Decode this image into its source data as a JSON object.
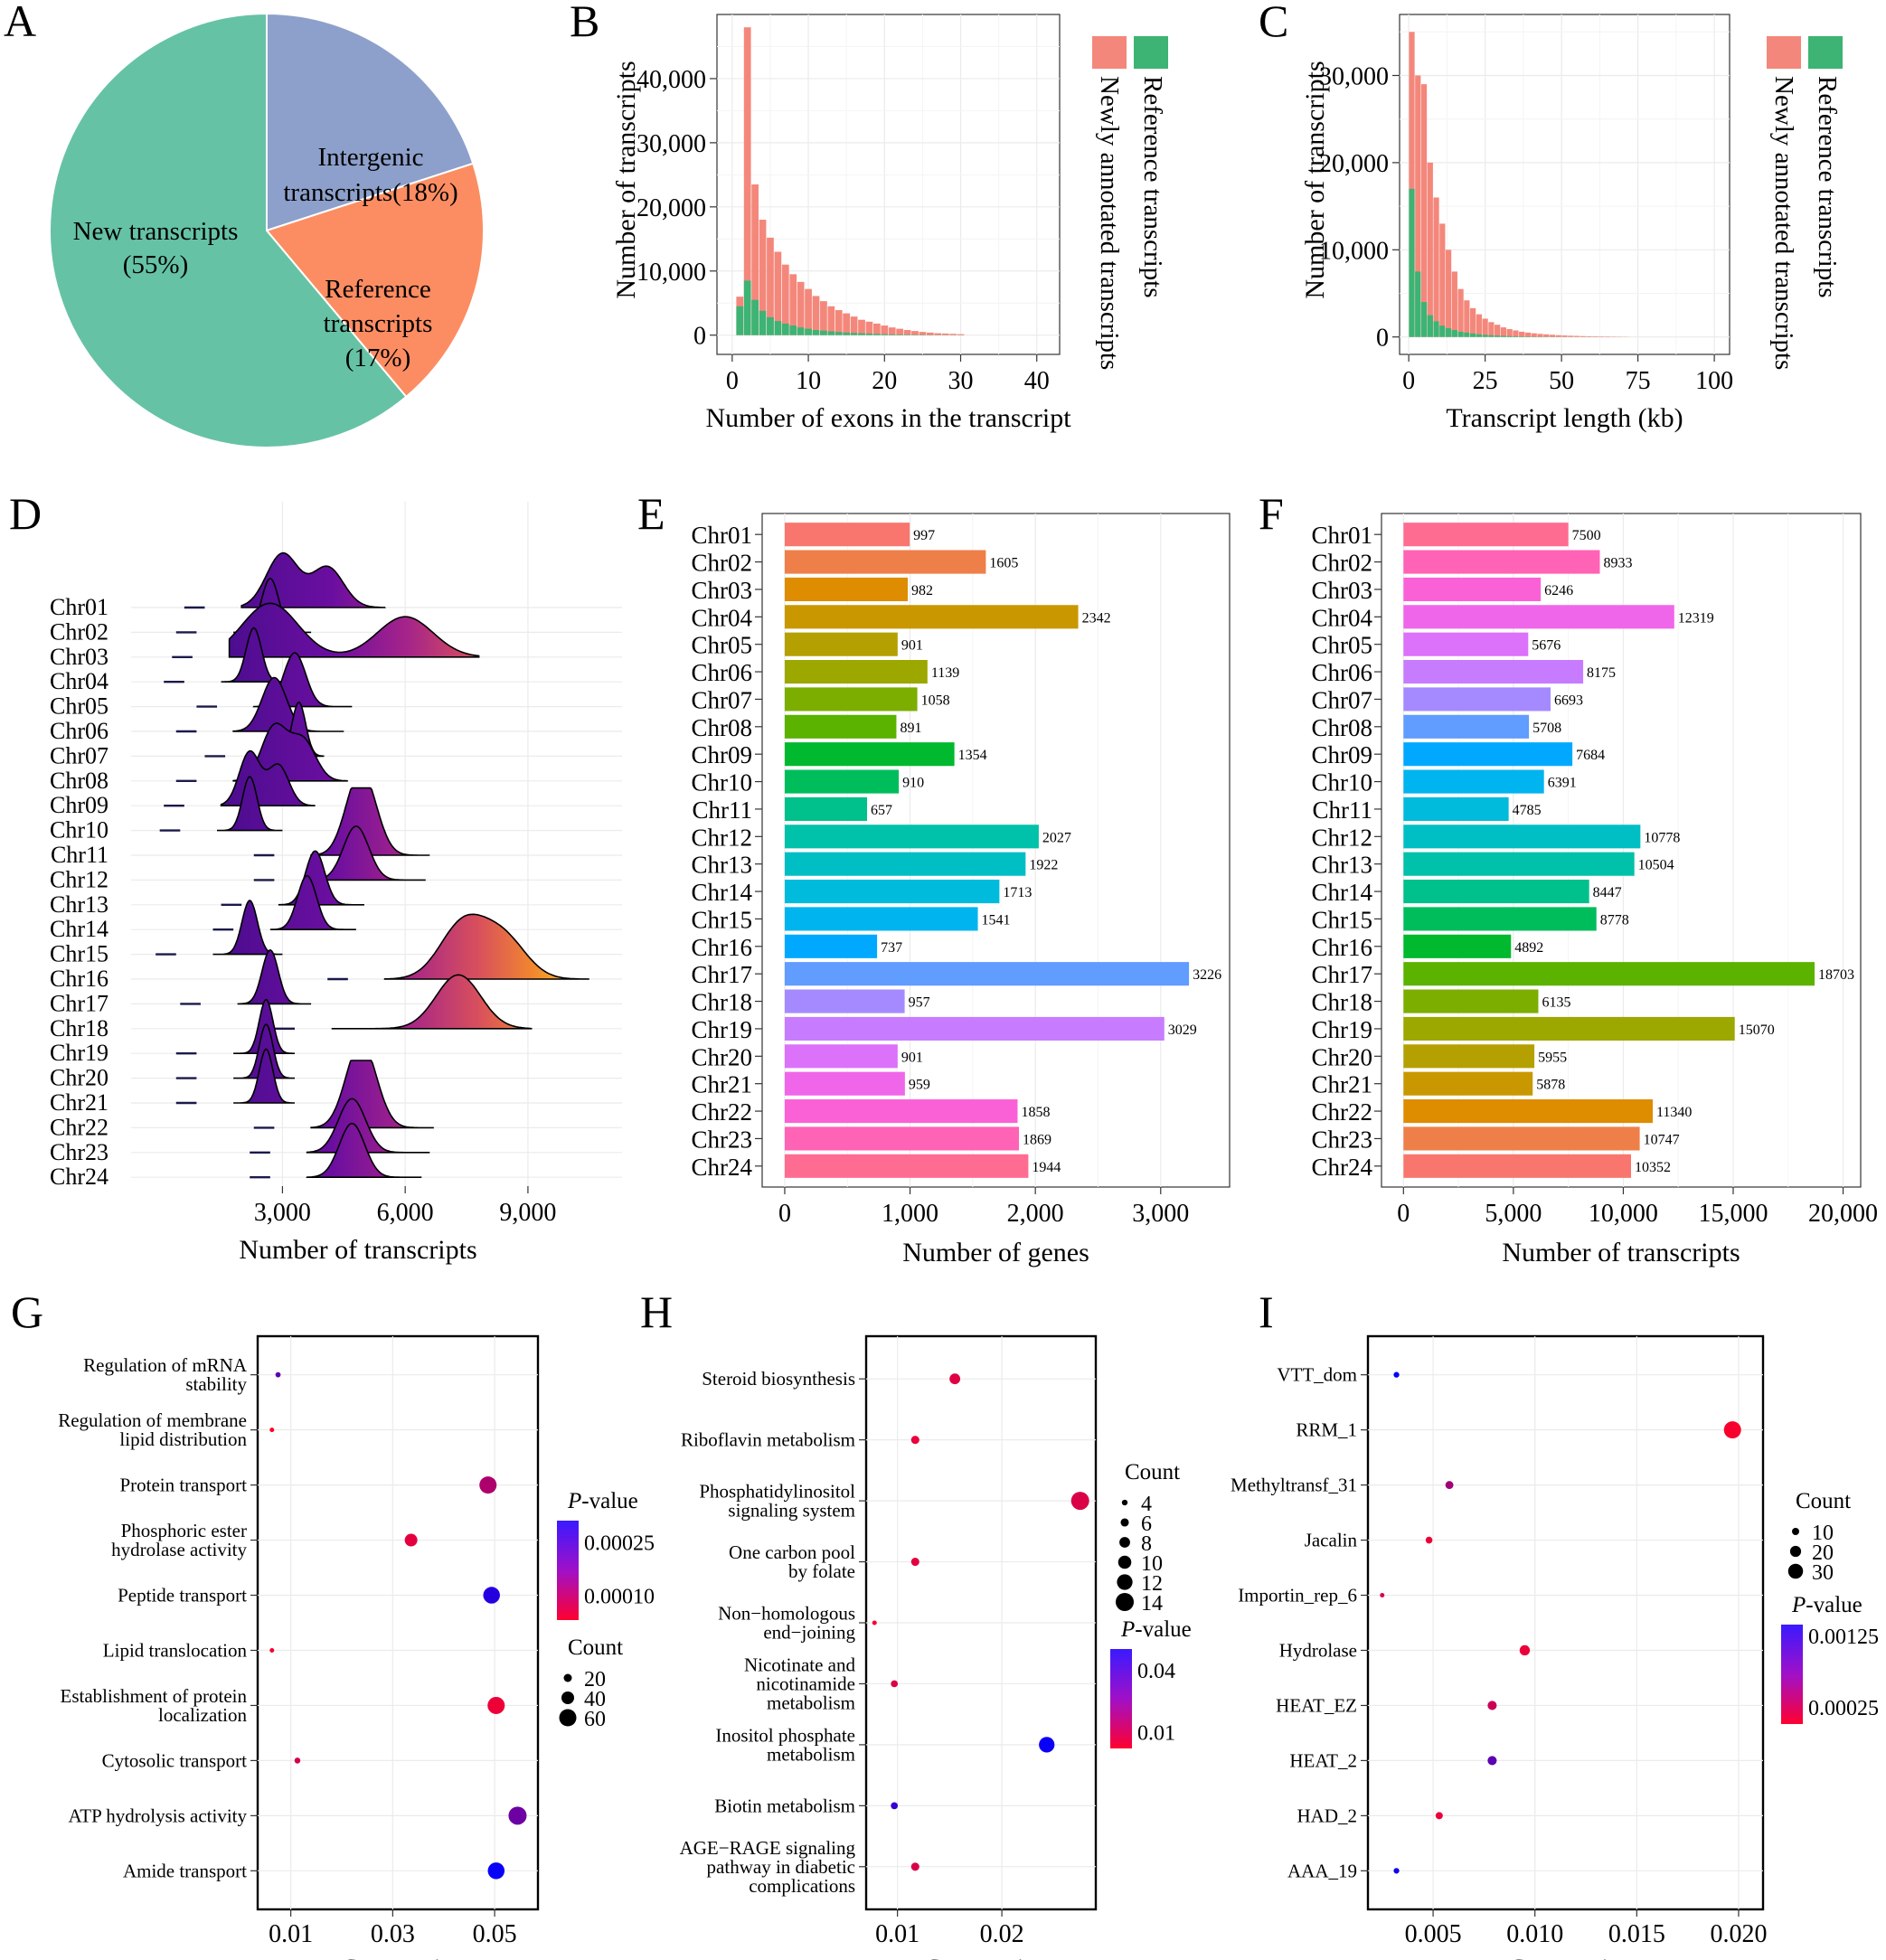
{
  "colors": {
    "new": "#66c2a5",
    "intergenic": "#8da0cb",
    "reference": "#fc8d62",
    "legend_newly": "#f4877b",
    "legend_reference": "#3db374",
    "grid": "#ebebeb",
    "frame": "#000000"
  },
  "chart_data": [
    {
      "panel": "A",
      "type": "pie",
      "slices": [
        {
          "label": "New transcripts",
          "pct": "(55%)",
          "value": 55
        },
        {
          "label": "Intergenic",
          "pct": "transcripts(18%)",
          "value": 18
        },
        {
          "label": "Reference",
          "pct": "transcripts",
          "pct2": "(17%)",
          "value": 17
        }
      ]
    },
    {
      "panel": "B",
      "type": "bar",
      "xlabel": "Number of exons in the transcript",
      "ylabel": "Number of transcripts",
      "xlim": [
        -2,
        43
      ],
      "ylim": [
        -3000,
        50000
      ],
      "xticks": [
        0,
        10,
        20,
        30,
        40
      ],
      "yticks": [
        0,
        10000,
        20000,
        30000,
        40000
      ],
      "xticklabels": [
        "0",
        "10",
        "20",
        "30",
        "40"
      ],
      "yticklabels": [
        "0",
        "10,000",
        "20,000",
        "30,000",
        "40,000"
      ],
      "legend": [
        "Newly annotated transcripts",
        "Reference  transcripts"
      ],
      "x": [
        1,
        2,
        3,
        4,
        5,
        6,
        7,
        8,
        9,
        10,
        11,
        12,
        13,
        14,
        15,
        16,
        17,
        18,
        19,
        20,
        21,
        22,
        23,
        24,
        25,
        26,
        27,
        28,
        29,
        30
      ],
      "total": [
        6000,
        48000,
        23500,
        18000,
        15200,
        13000,
        11000,
        9500,
        8300,
        7200,
        6100,
        5300,
        4500,
        3900,
        3400,
        2900,
        2400,
        2100,
        1800,
        1500,
        1200,
        1000,
        800,
        650,
        500,
        400,
        300,
        250,
        200,
        150
      ],
      "reference": [
        4500,
        8500,
        5500,
        3800,
        2800,
        2200,
        1800,
        1500,
        1200,
        1000,
        800,
        700,
        600,
        500,
        400,
        350,
        300,
        250,
        200,
        150,
        120,
        100,
        80,
        60,
        50,
        40,
        30,
        25,
        20,
        15
      ]
    },
    {
      "panel": "C",
      "type": "bar",
      "xlabel": "Transcript length (kb)",
      "ylabel": "Number of transcripts",
      "xlim": [
        -3,
        105
      ],
      "ylim": [
        -2000,
        37000
      ],
      "xticks": [
        0,
        25,
        50,
        75,
        100
      ],
      "yticks": [
        0,
        10000,
        20000,
        30000
      ],
      "xticklabels": [
        "0",
        "25",
        "50",
        "75",
        "100"
      ],
      "yticklabels": [
        "0",
        "10,000",
        "20,000",
        "30,000"
      ],
      "legend": [
        "Newly annotated transcripts",
        "Reference  transcripts"
      ],
      "x": [
        1,
        3,
        5,
        7,
        9,
        11,
        13,
        15,
        17,
        19,
        21,
        23,
        25,
        27,
        29,
        31,
        33,
        35,
        37,
        39,
        41,
        43,
        45,
        47,
        49,
        51,
        53,
        55,
        57,
        59,
        61,
        63,
        65,
        67,
        69,
        71
      ],
      "total": [
        35000,
        30000,
        29000,
        20000,
        16000,
        13000,
        10000,
        7500,
        5500,
        4200,
        3300,
        2600,
        2100,
        1700,
        1400,
        1100,
        900,
        750,
        600,
        500,
        420,
        350,
        300,
        250,
        200,
        170,
        140,
        120,
        100,
        80,
        70,
        60,
        50,
        40,
        30,
        20
      ],
      "reference": [
        17000,
        7500,
        4000,
        2500,
        1800,
        1300,
        1000,
        800,
        600,
        500,
        400,
        300,
        250,
        200,
        160,
        130,
        100,
        80,
        60,
        50,
        40,
        30,
        25,
        20,
        15,
        12,
        10,
        8,
        6,
        5,
        4,
        3,
        2,
        2,
        1,
        1
      ]
    },
    {
      "panel": "D",
      "type": "ridgeline",
      "xlabel": "Number of transcripts",
      "xticks": [
        3000,
        6000,
        9000
      ],
      "xticklabels": [
        "3,000",
        "6,000",
        "9,000"
      ],
      "xlim": [
        -700,
        11300
      ],
      "categories": [
        "Chr01",
        "Chr02",
        "Chr03",
        "Chr04",
        "Chr05",
        "Chr06",
        "Chr07",
        "Chr08",
        "Chr09",
        "Chr10",
        "Chr11",
        "Chr12",
        "Chr13",
        "Chr14",
        "Chr15",
        "Chr16",
        "Chr17",
        "Chr18",
        "Chr19",
        "Chr20",
        "Chr21",
        "Chr22",
        "Chr23",
        "Chr24"
      ],
      "peaks": [
        [
          3000,
          4100
        ],
        [
          2700
        ],
        [
          2700,
          6000
        ],
        [
          2300
        ],
        [
          3300
        ],
        [
          2800
        ],
        [
          3400
        ],
        [
          2800,
          3500
        ],
        [
          2200,
          2900
        ],
        [
          2200
        ],
        [
          4800,
          5100
        ],
        [
          4800
        ],
        [
          3800
        ],
        [
          3600
        ],
        [
          2200
        ],
        [
          7400,
          8400
        ],
        [
          2700
        ],
        [
          7300
        ],
        [
          2600
        ],
        [
          2600
        ],
        [
          2600
        ],
        [
          4800,
          5100
        ],
        [
          4700
        ],
        [
          4700
        ]
      ],
      "extents": [
        [
          2000,
          5500
        ],
        [
          1800,
          3700
        ],
        [
          1700,
          7800
        ],
        [
          1500,
          3200
        ],
        [
          2300,
          4700
        ],
        [
          1800,
          4500
        ],
        [
          2500,
          4000
        ],
        [
          1800,
          4600
        ],
        [
          1500,
          3800
        ],
        [
          1400,
          3000
        ],
        [
          3700,
          6600
        ],
        [
          3700,
          6500
        ],
        [
          2900,
          5000
        ],
        [
          2700,
          4800
        ],
        [
          1300,
          3000
        ],
        [
          5500,
          10500
        ],
        [
          1900,
          3700
        ],
        [
          4200,
          9100
        ],
        [
          1800,
          3300
        ],
        [
          1800,
          3300
        ],
        [
          1800,
          3300
        ],
        [
          3700,
          6700
        ],
        [
          3600,
          6600
        ],
        [
          3600,
          6400
        ]
      ]
    },
    {
      "panel": "E",
      "type": "hbar",
      "xlabel": "Number of genes",
      "xlim": [
        -180,
        3550
      ],
      "xticks": [
        0,
        1000,
        2000,
        3000
      ],
      "xticklabels": [
        "0",
        "1,000",
        "2,000",
        "3,000"
      ],
      "categories": [
        "Chr01",
        "Chr02",
        "Chr03",
        "Chr04",
        "Chr05",
        "Chr06",
        "Chr07",
        "Chr08",
        "Chr09",
        "Chr10",
        "Chr11",
        "Chr12",
        "Chr13",
        "Chr14",
        "Chr15",
        "Chr16",
        "Chr17",
        "Chr18",
        "Chr19",
        "Chr20",
        "Chr21",
        "Chr22",
        "Chr23",
        "Chr24"
      ],
      "values": [
        997,
        1605,
        982,
        2342,
        901,
        1139,
        1058,
        891,
        1354,
        910,
        657,
        2027,
        1922,
        1713,
        1541,
        737,
        3226,
        957,
        3029,
        901,
        959,
        1858,
        1869,
        1944
      ],
      "labels": [
        "997",
        "1605",
        "982",
        "2342",
        "901",
        "1139",
        "1058",
        "891",
        "1354",
        "910",
        "657",
        "2027",
        "1922",
        "1713",
        "1541",
        "737",
        "3226",
        "957",
        "3029",
        "901",
        "959",
        "1858",
        "1869",
        "1944"
      ],
      "bar_colors": [
        "#f8766d",
        "#ef7f49",
        "#de8c00",
        "#c99800",
        "#b4a000",
        "#9ca700",
        "#7cae00",
        "#5bb300",
        "#00b92e",
        "#00bd5c",
        "#00c08b",
        "#00c1a9",
        "#00bfc4",
        "#00bbdc",
        "#00b4ef",
        "#00a9ff",
        "#619cff",
        "#a58aff",
        "#c77cff",
        "#dc71fa",
        "#f066ea",
        "#fb61d7",
        "#ff63b6",
        "#ff6c91"
      ]
    },
    {
      "panel": "F",
      "type": "hbar",
      "xlabel": "Number of transcripts",
      "xlim": [
        -1000,
        20800
      ],
      "xticks": [
        0,
        5000,
        10000,
        15000,
        20000
      ],
      "xticklabels": [
        "0",
        "5,000",
        "10,000",
        "15,000",
        "20,000"
      ],
      "categories": [
        "Chr01",
        "Chr02",
        "Chr03",
        "Chr04",
        "Chr05",
        "Chr06",
        "Chr07",
        "Chr08",
        "Chr09",
        "Chr10",
        "Chr11",
        "Chr12",
        "Chr13",
        "Chr14",
        "Chr15",
        "Chr16",
        "Chr17",
        "Chr18",
        "Chr19",
        "Chr20",
        "Chr21",
        "Chr22",
        "Chr23",
        "Chr24"
      ],
      "values": [
        7500,
        8933,
        6246,
        12319,
        5676,
        8175,
        6693,
        5708,
        7684,
        6391,
        4785,
        10778,
        10504,
        8447,
        8778,
        4892,
        18703,
        6135,
        15070,
        5955,
        5878,
        11340,
        10747,
        10352
      ],
      "labels": [
        "7500",
        "8933",
        "6246",
        "12319",
        "5676",
        "8175",
        "6693",
        "5708",
        "7684",
        "6391",
        "4785",
        "10778",
        "10504",
        "8447",
        "8778",
        "4892",
        "18703",
        "6135",
        "15070",
        "5955",
        "5878",
        "11340",
        "10747",
        "10352"
      ],
      "bar_colors": [
        "#ff6c91",
        "#ff63b6",
        "#fb61d7",
        "#f066ea",
        "#dc71fa",
        "#c77cff",
        "#a58aff",
        "#619cff",
        "#00a9ff",
        "#00b4ef",
        "#00bbdc",
        "#00bfc4",
        "#00c1a9",
        "#00c08b",
        "#00bd5c",
        "#00b92e",
        "#5bb300",
        "#7cae00",
        "#9ca700",
        "#b4a000",
        "#c99800",
        "#de8c00",
        "#ef7f49",
        "#f8766d"
      ]
    },
    {
      "panel": "G",
      "type": "scatter",
      "xlabel": "Gene ratio",
      "xlim": [
        0.0035,
        0.0585
      ],
      "xticks": [
        0.01,
        0.03,
        0.05
      ],
      "xticklabels": [
        "0.01",
        "0.03",
        "0.05"
      ],
      "categories": [
        [
          "Regulation of mRNA",
          "stability"
        ],
        [
          "Regulation of membrane",
          "lipid distribution"
        ],
        [
          "Protein transport"
        ],
        [
          "Phosphoric ester",
          "hydrolase activity"
        ],
        [
          "Peptide transport"
        ],
        [
          "Lipid translocation"
        ],
        [
          "Establishment of protein",
          "localization"
        ],
        [
          "Cytosolic transport"
        ],
        [
          "ATP hydrolysis activity"
        ],
        [
          "Amide transport"
        ]
      ],
      "gene_ratio": [
        0.0075,
        0.0063,
        0.0487,
        0.0336,
        0.0494,
        0.0063,
        0.0503,
        0.0113,
        0.0545,
        0.0503
      ],
      "count": [
        7,
        4,
        60,
        40,
        58,
        4,
        60,
        10,
        64,
        58
      ],
      "pvalue": [
        0.00021,
        3e-05,
        0.00012,
        6e-05,
        0.00027,
        4e-05,
        5e-05,
        8e-05,
        0.00019,
        0.0003
      ],
      "color_legend": {
        "title": "-value",
        "title_italic": "P",
        "ticks": [
          0.00025,
          0.0001
        ],
        "ticklabels": [
          "0.00025",
          "0.00010"
        ],
        "range": [
          3e-05,
          0.00031
        ]
      },
      "size_legend": {
        "title": "Count",
        "values": [
          20,
          40,
          60
        ],
        "labels": [
          "20",
          "40",
          "60"
        ]
      }
    },
    {
      "panel": "H",
      "type": "scatter",
      "xlabel": "Gene ratio",
      "xlim": [
        0.007,
        0.029
      ],
      "xticks": [
        0.01,
        0.02
      ],
      "xticklabels": [
        "0.01",
        "0.02"
      ],
      "categories": [
        [
          "Steroid biosynthesis"
        ],
        [
          "Riboflavin metabolism"
        ],
        [
          "Phosphatidylinositol",
          "signaling system"
        ],
        [
          "One carbon pool",
          "by folate"
        ],
        [
          "Non−homologous",
          "end−joining"
        ],
        [
          "Nicotinate and",
          "nicotinamide",
          "metabolism"
        ],
        [
          "Inositol phosphate",
          "metabolism"
        ],
        [
          "Biotin metabolism"
        ],
        [
          "AGE−RAGE signaling",
          "pathway in diabetic",
          "complications"
        ]
      ],
      "gene_ratio": [
        0.0155,
        0.0117,
        0.0275,
        0.0117,
        0.0078,
        0.0097,
        0.0243,
        0.0097,
        0.0117
      ],
      "count": [
        8,
        6,
        14,
        6,
        3,
        5,
        12,
        5,
        6
      ],
      "pvalue": [
        0.008,
        0.006,
        0.009,
        0.007,
        0.004,
        0.009,
        0.048,
        0.04,
        0.009
      ],
      "color_legend": {
        "title": "-value",
        "title_italic": "P",
        "ticks": [
          0.04,
          0.01
        ],
        "ticklabels": [
          "0.04",
          "0.01"
        ],
        "range": [
          0.002,
          0.05
        ]
      },
      "size_legend": {
        "title": "Count",
        "values": [
          4,
          6,
          8,
          10,
          12,
          14
        ],
        "labels": [
          "4",
          "6",
          "8",
          "10",
          "12",
          "14"
        ]
      }
    },
    {
      "panel": "I",
      "type": "scatter",
      "xlabel": "Gene ratio",
      "xlim": [
        0.0018,
        0.0212
      ],
      "xticks": [
        0.005,
        0.01,
        0.015,
        0.02
      ],
      "xticklabels": [
        "0.005",
        "0.010",
        "0.015",
        "0.020"
      ],
      "categories": [
        [
          "VTT_dom"
        ],
        [
          "RRM_1"
        ],
        [
          "Methyltransf_31"
        ],
        [
          "Jacalin"
        ],
        [
          "Importin_rep_6"
        ],
        [
          "Hydrolase"
        ],
        [
          "HEAT_EZ"
        ],
        [
          "HEAT_2"
        ],
        [
          "HAD_2"
        ],
        [
          "AAA_19"
        ]
      ],
      "gene_ratio": [
        0.0032,
        0.0197,
        0.0058,
        0.0048,
        0.0025,
        0.0095,
        0.0079,
        0.0079,
        0.0053,
        0.0032
      ],
      "count": [
        6,
        36,
        12,
        9,
        3,
        18,
        15,
        15,
        10,
        6
      ],
      "pvalue": [
        0.00138,
        5e-05,
        0.00052,
        0.0001,
        0.0002,
        0.00012,
        0.0003,
        0.0009,
        0.00012,
        0.0013
      ],
      "color_legend": {
        "title": "-value",
        "title_italic": "P",
        "ticks": [
          0.00125,
          0.00025
        ],
        "ticklabels": [
          "0.00125",
          "0.00025"
        ],
        "range": [
          1e-05,
          0.0014
        ]
      },
      "size_legend": {
        "title": "Count",
        "values": [
          10,
          20,
          30
        ],
        "labels": [
          "10",
          "20",
          "30"
        ]
      }
    }
  ]
}
